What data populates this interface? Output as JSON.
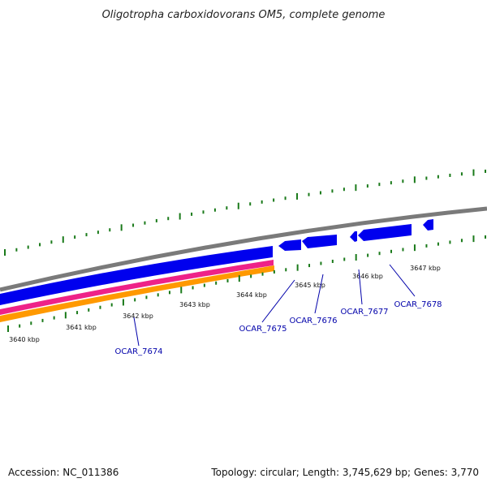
{
  "title": "Oligotropha carboxidovorans OM5, complete genome",
  "footer": {
    "accession": "Accession: NC_011386",
    "summary": "Topology: circular; Length: 3,745,629 bp; Genes: 3,770"
  },
  "colors": {
    "backbone": "#7a7a7a",
    "cds": "#0000ee",
    "trna_band": "#ee2288",
    "gc_band": "#ff9900",
    "ticks": "#1a7a1a",
    "gene_label": "#0000aa"
  },
  "tick_labels": [
    {
      "id": "tick-3640",
      "text": "3640 kbp"
    },
    {
      "id": "tick-3641",
      "text": "3641 kbp"
    },
    {
      "id": "tick-3642",
      "text": "3642 kbp"
    },
    {
      "id": "tick-3643",
      "text": "3643 kbp"
    },
    {
      "id": "tick-3644",
      "text": "3644 kbp"
    },
    {
      "id": "tick-3645",
      "text": "3645 kbp"
    },
    {
      "id": "tick-3646",
      "text": "3646 kbp"
    },
    {
      "id": "tick-3647",
      "text": "3647 kbp"
    }
  ],
  "genes": [
    {
      "id": "OCAR_7674",
      "label": "OCAR_7674"
    },
    {
      "id": "OCAR_7675",
      "label": "OCAR_7675"
    },
    {
      "id": "OCAR_7676",
      "label": "OCAR_7676"
    },
    {
      "id": "OCAR_7677",
      "label": "OCAR_7677"
    },
    {
      "id": "OCAR_7678",
      "label": "OCAR_7678"
    }
  ]
}
